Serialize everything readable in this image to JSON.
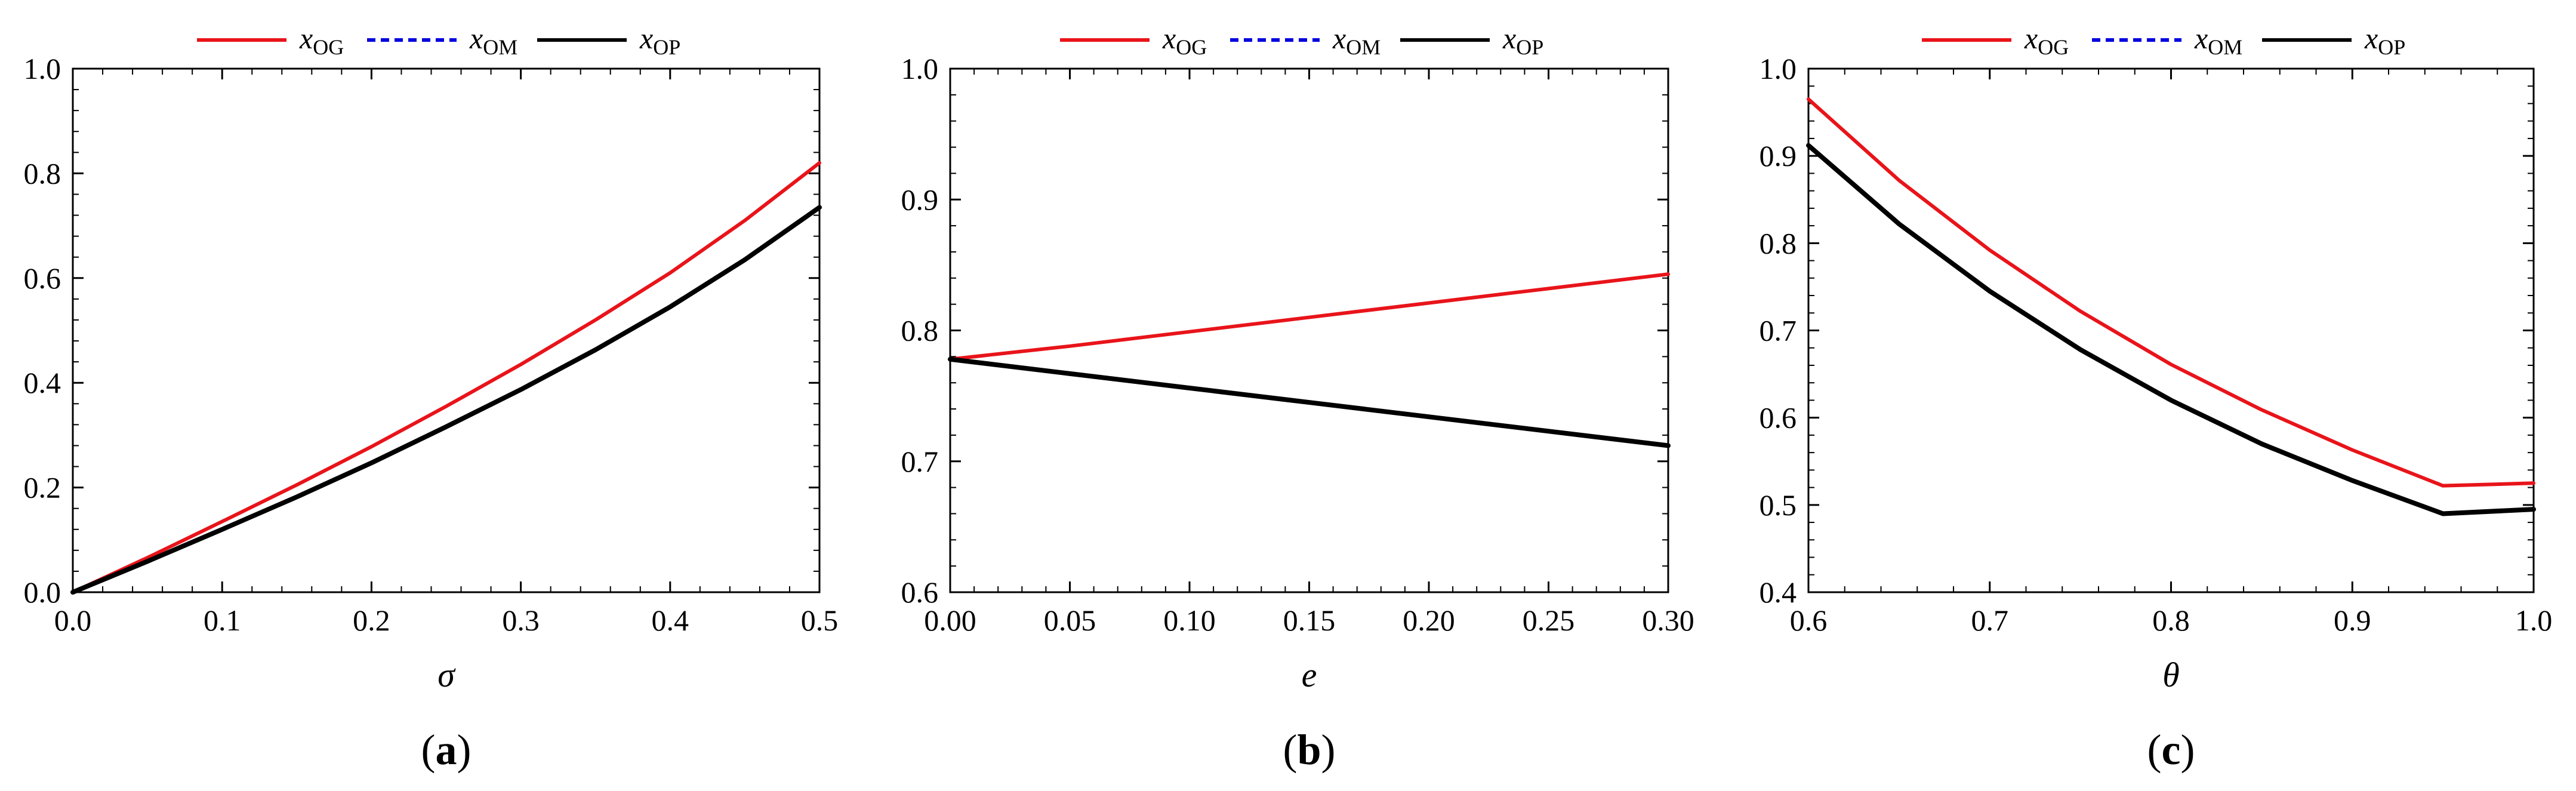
{
  "colors": {
    "og": "#e8141a",
    "om": "#0000e0",
    "op": "#000000"
  },
  "legend": [
    {
      "key": "og",
      "base": "x",
      "sub": "OG",
      "style": "solid"
    },
    {
      "key": "om",
      "base": "x",
      "sub": "OM",
      "style": "dashed"
    },
    {
      "key": "op",
      "base": "x",
      "sub": "OP",
      "style": "solid"
    }
  ],
  "chart_data": [
    {
      "type": "line",
      "panel_label": "a",
      "xlabel": "σ",
      "ylabel": "",
      "xlim": [
        0,
        0.5
      ],
      "ylim": [
        0,
        1
      ],
      "xticks": [
        0,
        0.1,
        0.2,
        0.3,
        0.4,
        0.5
      ],
      "xtick_labels": [
        "0.0",
        "0.1",
        "0.2",
        "0.3",
        "0.4",
        "0.5"
      ],
      "yticks": [
        0,
        0.2,
        0.4,
        0.6,
        0.8,
        1.0
      ],
      "ytick_labels": [
        "0.0",
        "0.2",
        "0.4",
        "0.6",
        "0.8",
        "1.0"
      ],
      "x": [
        0,
        0.05,
        0.1,
        0.15,
        0.2,
        0.25,
        0.3,
        0.35,
        0.4,
        0.45,
        0.5
      ],
      "series": [
        {
          "name": "x_OG",
          "key": "og",
          "values": [
            0,
            0.066,
            0.135,
            0.205,
            0.278,
            0.355,
            0.435,
            0.52,
            0.61,
            0.71,
            0.82
          ]
        },
        {
          "name": "x_OM",
          "key": "om",
          "values": [
            0,
            0.059,
            0.12,
            0.182,
            0.247,
            0.316,
            0.387,
            0.463,
            0.545,
            0.635,
            0.735
          ]
        },
        {
          "name": "x_OP",
          "key": "op",
          "values": [
            0,
            0.059,
            0.12,
            0.182,
            0.247,
            0.316,
            0.387,
            0.463,
            0.545,
            0.635,
            0.735
          ]
        }
      ]
    },
    {
      "type": "line",
      "panel_label": "b",
      "xlabel": "e",
      "ylabel": "",
      "xlim": [
        0,
        0.3
      ],
      "ylim": [
        0.6,
        1.0
      ],
      "xticks": [
        0,
        0.05,
        0.1,
        0.15,
        0.2,
        0.25,
        0.3
      ],
      "xtick_labels": [
        "0.00",
        "0.05",
        "0.10",
        "0.15",
        "0.20",
        "0.25",
        "0.30"
      ],
      "yticks": [
        0.6,
        0.7,
        0.8,
        0.9,
        1.0
      ],
      "ytick_labels": [
        "0.6",
        "0.7",
        "0.8",
        "0.9",
        "1.0"
      ],
      "x": [
        0,
        0.05,
        0.1,
        0.15,
        0.2,
        0.25,
        0.3
      ],
      "series": [
        {
          "name": "x_OG",
          "key": "og",
          "values": [
            0.778,
            0.788,
            0.799,
            0.81,
            0.821,
            0.832,
            0.843
          ]
        },
        {
          "name": "x_OM",
          "key": "om",
          "values": [
            0.778,
            0.767,
            0.756,
            0.745,
            0.734,
            0.723,
            0.712
          ]
        },
        {
          "name": "x_OP",
          "key": "op",
          "values": [
            0.778,
            0.767,
            0.756,
            0.745,
            0.734,
            0.723,
            0.712
          ]
        }
      ]
    },
    {
      "type": "line",
      "panel_label": "c",
      "xlabel": "θ",
      "ylabel": "",
      "xlim": [
        0.6,
        1.0
      ],
      "ylim": [
        0.4,
        1.0
      ],
      "xticks": [
        0.6,
        0.7,
        0.8,
        0.9,
        1.0
      ],
      "xtick_labels": [
        "0.6",
        "0.7",
        "0.8",
        "0.9",
        "1.0"
      ],
      "yticks": [
        0.4,
        0.5,
        0.6,
        0.7,
        0.8,
        0.9,
        1.0
      ],
      "ytick_labels": [
        "0.4",
        "0.5",
        "0.6",
        "0.7",
        "0.8",
        "0.9",
        "1.0"
      ],
      "x": [
        0.6,
        0.65,
        0.7,
        0.75,
        0.8,
        0.85,
        0.9,
        0.95,
        1.0
      ],
      "series": [
        {
          "name": "x_OG",
          "key": "og",
          "values": [
            0.965,
            0.872,
            0.792,
            0.722,
            0.661,
            0.609,
            0.563,
            0.522,
            0.525
          ]
        },
        {
          "name": "x_OM",
          "key": "om",
          "values": [
            0.912,
            0.822,
            0.745,
            0.678,
            0.62,
            0.57,
            0.528,
            0.49,
            0.495
          ]
        },
        {
          "name": "x_OP",
          "key": "op",
          "values": [
            0.912,
            0.822,
            0.745,
            0.678,
            0.62,
            0.57,
            0.528,
            0.49,
            0.495
          ]
        }
      ]
    }
  ]
}
